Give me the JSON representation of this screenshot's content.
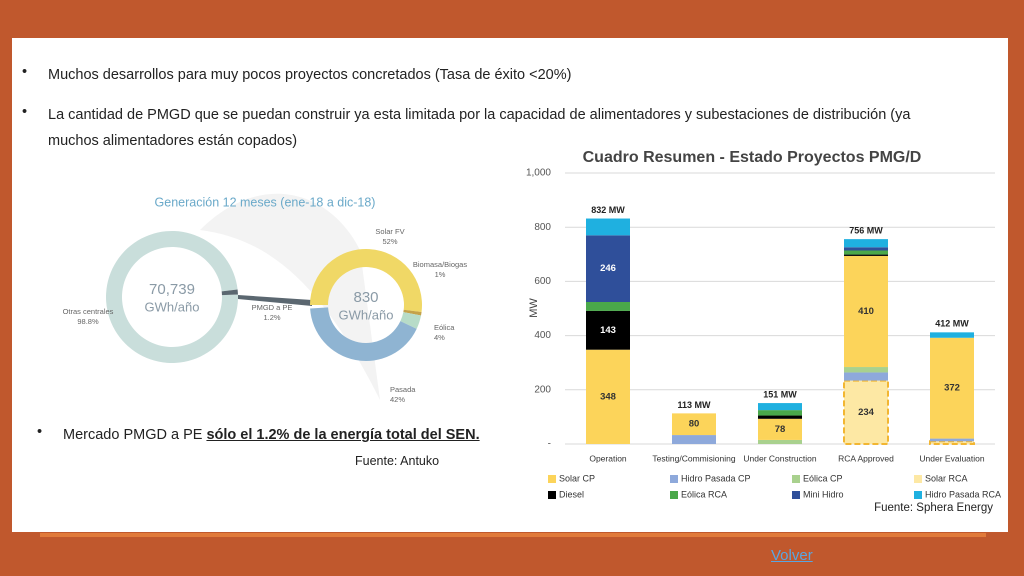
{
  "bullets": [
    "Muchos desarrollos para muy pocos proyectos concretados (Tasa de éxito <20%)",
    "La cantidad de PMGD que se puedan construir ya esta limitada por la capacidad de alimentadores y subestaciones de distribución (ya muchos alimentadores están copados)"
  ],
  "market_bullet": {
    "text": "Mercado PMGD a PE ",
    "emphasis": "sólo el 1.2% de la energía total del SEN."
  },
  "left_source": "Fuente: Antuko",
  "generation": {
    "type": "donut",
    "title": "Generación 12 meses (ene-18 a dic-18)",
    "total": {
      "center_value": "70,739",
      "center_unit": "GWh/año",
      "names": [
        "Otras centrales",
        "PMGD a PE"
      ],
      "values": [
        98.8,
        1.2
      ],
      "value_labels": [
        "98.8%",
        "1.2%"
      ],
      "colors": [
        "#c9dedb",
        "#5b6770"
      ]
    },
    "pmgd": {
      "center_value": "830",
      "center_unit": "GWh/año",
      "names": [
        "Solar FV",
        "Biomasa/Biogas",
        "Eólica",
        "Pasada"
      ],
      "values": [
        52,
        1,
        4,
        42
      ],
      "value_labels": [
        "52%",
        "1%",
        "4%",
        "42%"
      ],
      "colors": [
        "#f0d866",
        "#c4a24a",
        "#b7dcc8",
        "#8fb4d2"
      ]
    }
  },
  "chart": {
    "type": "bar",
    "stacked": true,
    "title": "Cuadro Resumen - Estado Proyectos PMG/D",
    "y_label": "MW",
    "categories": [
      "Operation",
      "Testing/Commisioning",
      "Under Construction",
      "RCA Approved",
      "Under Evaluation"
    ],
    "ylim": [
      0,
      1000
    ],
    "yticks": [
      {
        "value": 0,
        "label": "-"
      },
      200,
      400,
      600,
      800,
      {
        "value": 1000,
        "label": "1,000"
      }
    ],
    "grid": true,
    "series": [
      {
        "name": "Solar RCA",
        "color": "#fde8a4",
        "values": [
          0,
          0,
          0,
          234,
          10
        ],
        "value_labels": [
          null,
          null,
          null,
          "234",
          null
        ]
      },
      {
        "name": "Hidro Pasada CP",
        "color": "#8ea9db",
        "values": [
          0,
          33,
          0,
          30,
          10
        ],
        "value_labels": [
          null,
          null,
          null,
          null,
          null
        ]
      },
      {
        "name": "Eólica CP",
        "color": "#a9d18e",
        "values": [
          0,
          0,
          15,
          20,
          0
        ],
        "value_labels": [
          null,
          null,
          null,
          null,
          null
        ]
      },
      {
        "name": "Solar CP",
        "color": "#fcd45a",
        "values": [
          348,
          80,
          78,
          410,
          372
        ],
        "value_labels": [
          "348",
          "80",
          "78",
          "410",
          "372"
        ]
      },
      {
        "name": "Diesel",
        "color": "#000000",
        "values": [
          143,
          0,
          12,
          5,
          0
        ],
        "value_labels": [
          "143",
          null,
          null,
          null,
          null
        ]
      },
      {
        "name": "Eólica RCA",
        "color": "#4aa84a",
        "values": [
          33,
          0,
          20,
          15,
          0
        ],
        "value_labels": [
          null,
          null,
          null,
          null,
          null
        ]
      },
      {
        "name": "Mini Hidro",
        "color": "#2f4f9a",
        "values": [
          246,
          0,
          0,
          12,
          0
        ],
        "value_labels": [
          "246",
          null,
          null,
          null,
          null
        ]
      },
      {
        "name": "Hidro Pasada RCA",
        "color": "#1fb0e0",
        "values": [
          62,
          0,
          26,
          30,
          20
        ],
        "value_labels": [
          null,
          null,
          null,
          null,
          null
        ]
      }
    ],
    "totals": [
      832,
      113,
      151,
      756,
      412
    ],
    "total_labels": [
      "832 MW",
      "113 MW",
      "151 MW",
      "756 MW",
      "412 MW"
    ],
    "source": "Fuente:  Sphera Energy"
  },
  "link": "Volver"
}
